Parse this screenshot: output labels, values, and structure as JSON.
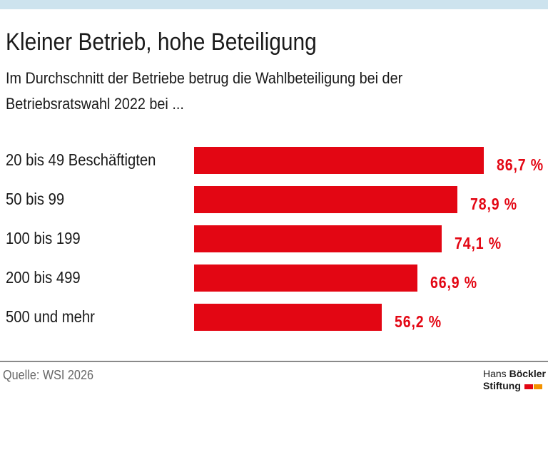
{
  "title": "Kleiner Betrieb, hohe Beteiligung",
  "subtitle": "Im Durchschnitt der Betriebe betrug die Wahlbeteiligung bei der Betriebsratswahl 2022 bei ...",
  "source": "Quelle: WSI 2026",
  "logo": {
    "line1_a": "Hans ",
    "line1_b": "Böckler",
    "line2": "Stiftung",
    "colors": [
      "#e30613",
      "#f39200"
    ]
  },
  "chart_data": {
    "type": "bar",
    "orientation": "horizontal",
    "title": "Kleiner Betrieb, hohe Beteiligung",
    "categories": [
      "20 bis 49 Beschäftigten",
      "50 bis 99",
      "100 bis 199",
      "200 bis 499",
      "500 und mehr"
    ],
    "values": [
      86.7,
      78.9,
      74.1,
      66.9,
      56.2
    ],
    "labels": [
      "86,7 %",
      "78,9 %",
      "74,1 %",
      "66,9 %",
      "56,2 %"
    ],
    "unit": "%",
    "color": "#e30613",
    "grid": false,
    "xlim": [
      0,
      100
    ]
  }
}
